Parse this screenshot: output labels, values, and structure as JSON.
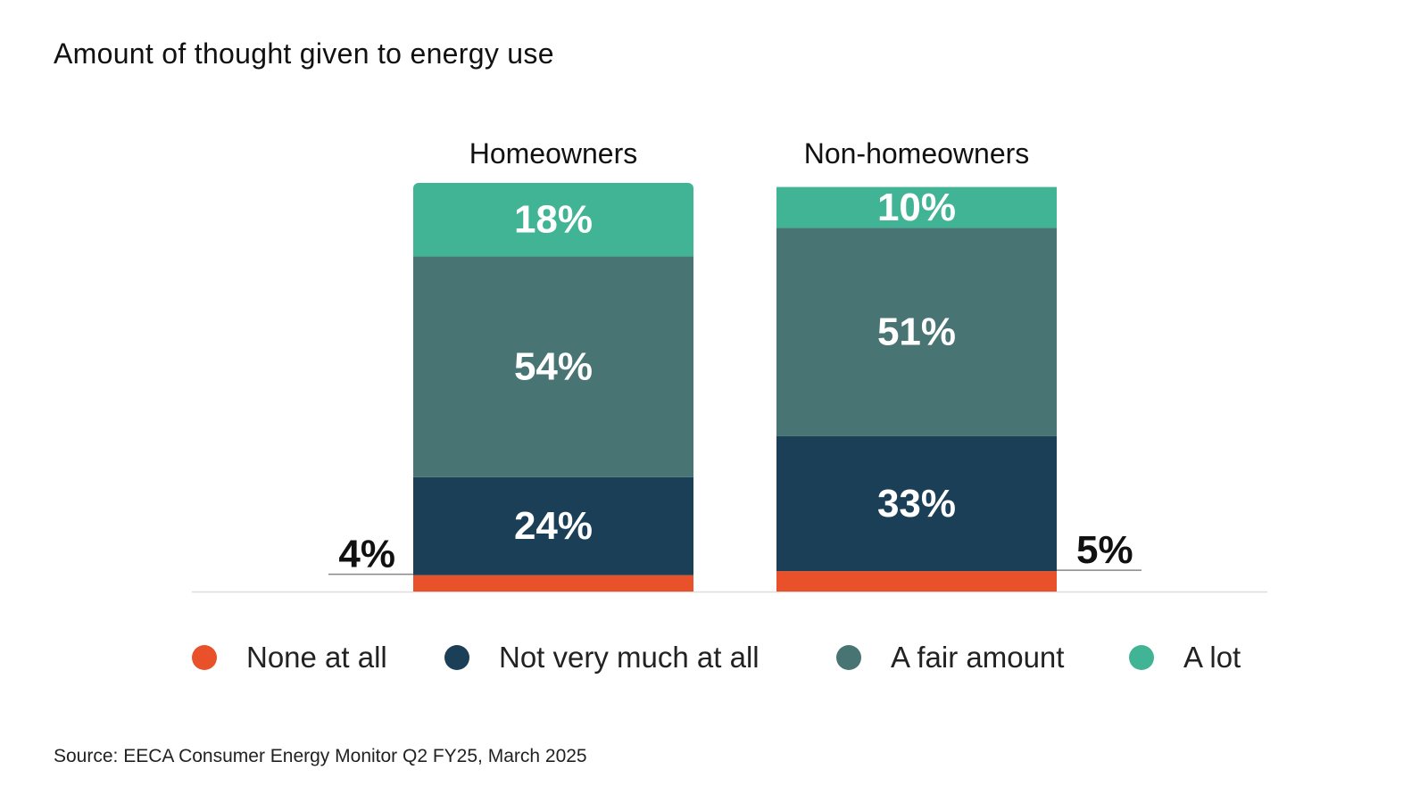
{
  "chart_data": {
    "type": "bar",
    "stacked": true,
    "title": "Amount of thought given to energy use",
    "categories": [
      "Homeowners",
      "Non-homeowners"
    ],
    "series": [
      {
        "name": "None at all",
        "color": "#E8512A",
        "values": [
          4,
          5
        ],
        "labels": [
          "4%",
          "5%"
        ]
      },
      {
        "name": "Not very much at all",
        "color": "#1A3F56",
        "values": [
          24,
          33
        ],
        "labels": [
          "24%",
          "33%"
        ]
      },
      {
        "name": "A fair amount",
        "color": "#487573",
        "values": [
          54,
          51
        ],
        "labels": [
          "54%",
          "51%"
        ]
      },
      {
        "name": "A lot",
        "color": "#42B496",
        "values": [
          18,
          10
        ],
        "labels": [
          "18%",
          "10%"
        ]
      }
    ],
    "ylim": [
      0,
      100
    ],
    "grid": false,
    "legend_position": "bottom"
  },
  "source": "Source: EECA Consumer Energy Monitor Q2 FY25, March 2025"
}
